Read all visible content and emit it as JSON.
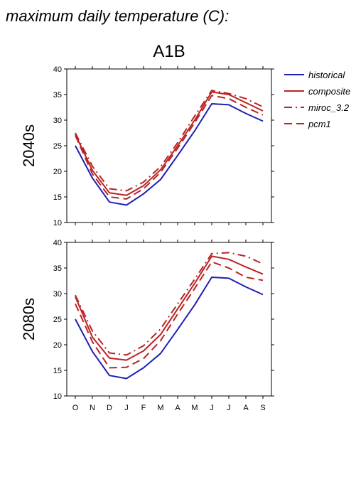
{
  "header": {
    "title": "maximum daily temperature (C):",
    "scenario": "A1B"
  },
  "colors": {
    "historical": "#1f1fb4",
    "composite": "#bb2222",
    "miroc_3.2": "#bb2222",
    "pcm1": "#bb2222"
  },
  "chart_data": {
    "type": "line",
    "categories": [
      "O",
      "N",
      "D",
      "J",
      "F",
      "M",
      "A",
      "M",
      "J",
      "J",
      "A",
      "S"
    ],
    "ylim": [
      10,
      40
    ],
    "yticks": [
      "10",
      "15",
      "20",
      "25",
      "30",
      "35",
      "40"
    ],
    "legend": {
      "position": "right",
      "items": [
        {
          "name": "historical",
          "style": "solid",
          "color": "#1f1fb4"
        },
        {
          "name": "composite",
          "style": "solid",
          "color": "#bb2222"
        },
        {
          "name": "miroc_3.2",
          "style": "dash-dot",
          "color": "#bb2222"
        },
        {
          "name": "pcm1",
          "style": "dashed",
          "color": "#bb2222"
        }
      ]
    },
    "panels": [
      {
        "ylabel": "2040s",
        "series": [
          {
            "name": "historical",
            "values": [
              25.0,
              18.7,
              14.0,
              13.4,
              15.6,
              18.4,
              23.1,
              27.9,
              33.2,
              33.0,
              31.3,
              29.8
            ]
          },
          {
            "name": "composite",
            "values": [
              27.2,
              20.2,
              15.8,
              15.3,
              17.2,
              20.3,
              25.0,
              30.0,
              35.5,
              35.0,
              33.4,
              31.8
            ]
          },
          {
            "name": "miroc_3.2",
            "values": [
              27.5,
              21.0,
              16.6,
              16.2,
              17.9,
              20.9,
              25.6,
              30.8,
              35.8,
              35.2,
              34.2,
              32.6
            ]
          },
          {
            "name": "pcm1",
            "values": [
              27.0,
              19.5,
              15.0,
              14.6,
              16.6,
              19.8,
              24.5,
              29.5,
              34.8,
              34.2,
              32.5,
              31.0
            ]
          }
        ]
      },
      {
        "ylabel": "2080s",
        "series": [
          {
            "name": "historical",
            "values": [
              25.0,
              18.7,
              14.0,
              13.4,
              15.5,
              18.3,
              23.0,
              27.8,
              33.2,
              33.0,
              31.3,
              29.8
            ]
          },
          {
            "name": "composite",
            "values": [
              29.4,
              21.5,
              17.4,
              17.0,
              18.8,
              22.0,
              27.0,
              32.0,
              37.3,
              36.7,
              35.2,
              33.8
            ]
          },
          {
            "name": "miroc_3.2",
            "values": [
              29.7,
              22.7,
              18.4,
              18.0,
              19.8,
              23.1,
              28.0,
              32.8,
              37.8,
              38.0,
              37.3,
              35.8
            ]
          },
          {
            "name": "pcm1",
            "values": [
              28.0,
              20.6,
              15.5,
              15.6,
              17.3,
              20.8,
              26.0,
              31.0,
              36.2,
              35.0,
              33.2,
              32.6
            ]
          }
        ]
      }
    ]
  }
}
